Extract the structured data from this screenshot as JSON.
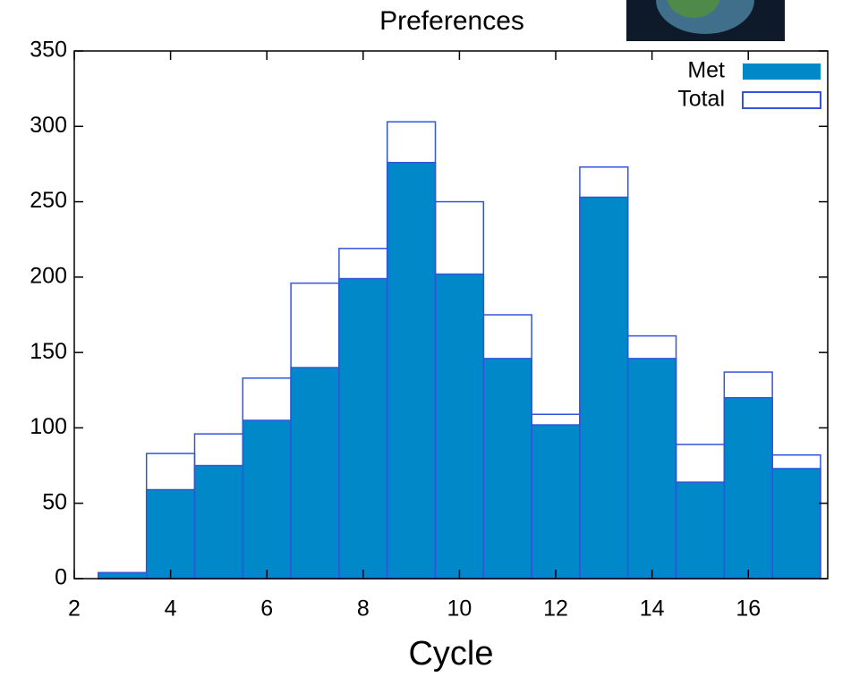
{
  "chart_data": {
    "type": "histogram",
    "title": "Preferences",
    "x_label": "Cycle",
    "bins": [
      2.5,
      3.5,
      4.5,
      5.5,
      6.5,
      7.5,
      8.5,
      9.5,
      10.5,
      11.5,
      12.5,
      13.5,
      14.5,
      15.5,
      16.5,
      17.5
    ],
    "series": [
      {
        "name": "Total",
        "color": "#3355dd",
        "style": "outline",
        "values": [
          4,
          83,
          96,
          133,
          196,
          219,
          303,
          250,
          175,
          109,
          273,
          161,
          89,
          137,
          82
        ]
      },
      {
        "name": "Met",
        "color": "#0088c8",
        "style": "filled",
        "values": [
          4,
          59,
          75,
          105,
          140,
          199,
          276,
          202,
          146,
          102,
          253,
          146,
          64,
          120,
          73
        ]
      }
    ],
    "xlim": [
      2,
      17.65
    ],
    "xticks": [
      2,
      4,
      6,
      8,
      10,
      12,
      14,
      16
    ],
    "ylim": [
      0,
      350
    ],
    "yticks": [
      0,
      50,
      100,
      150,
      200,
      250,
      300,
      350
    ],
    "legend": "top-right"
  }
}
